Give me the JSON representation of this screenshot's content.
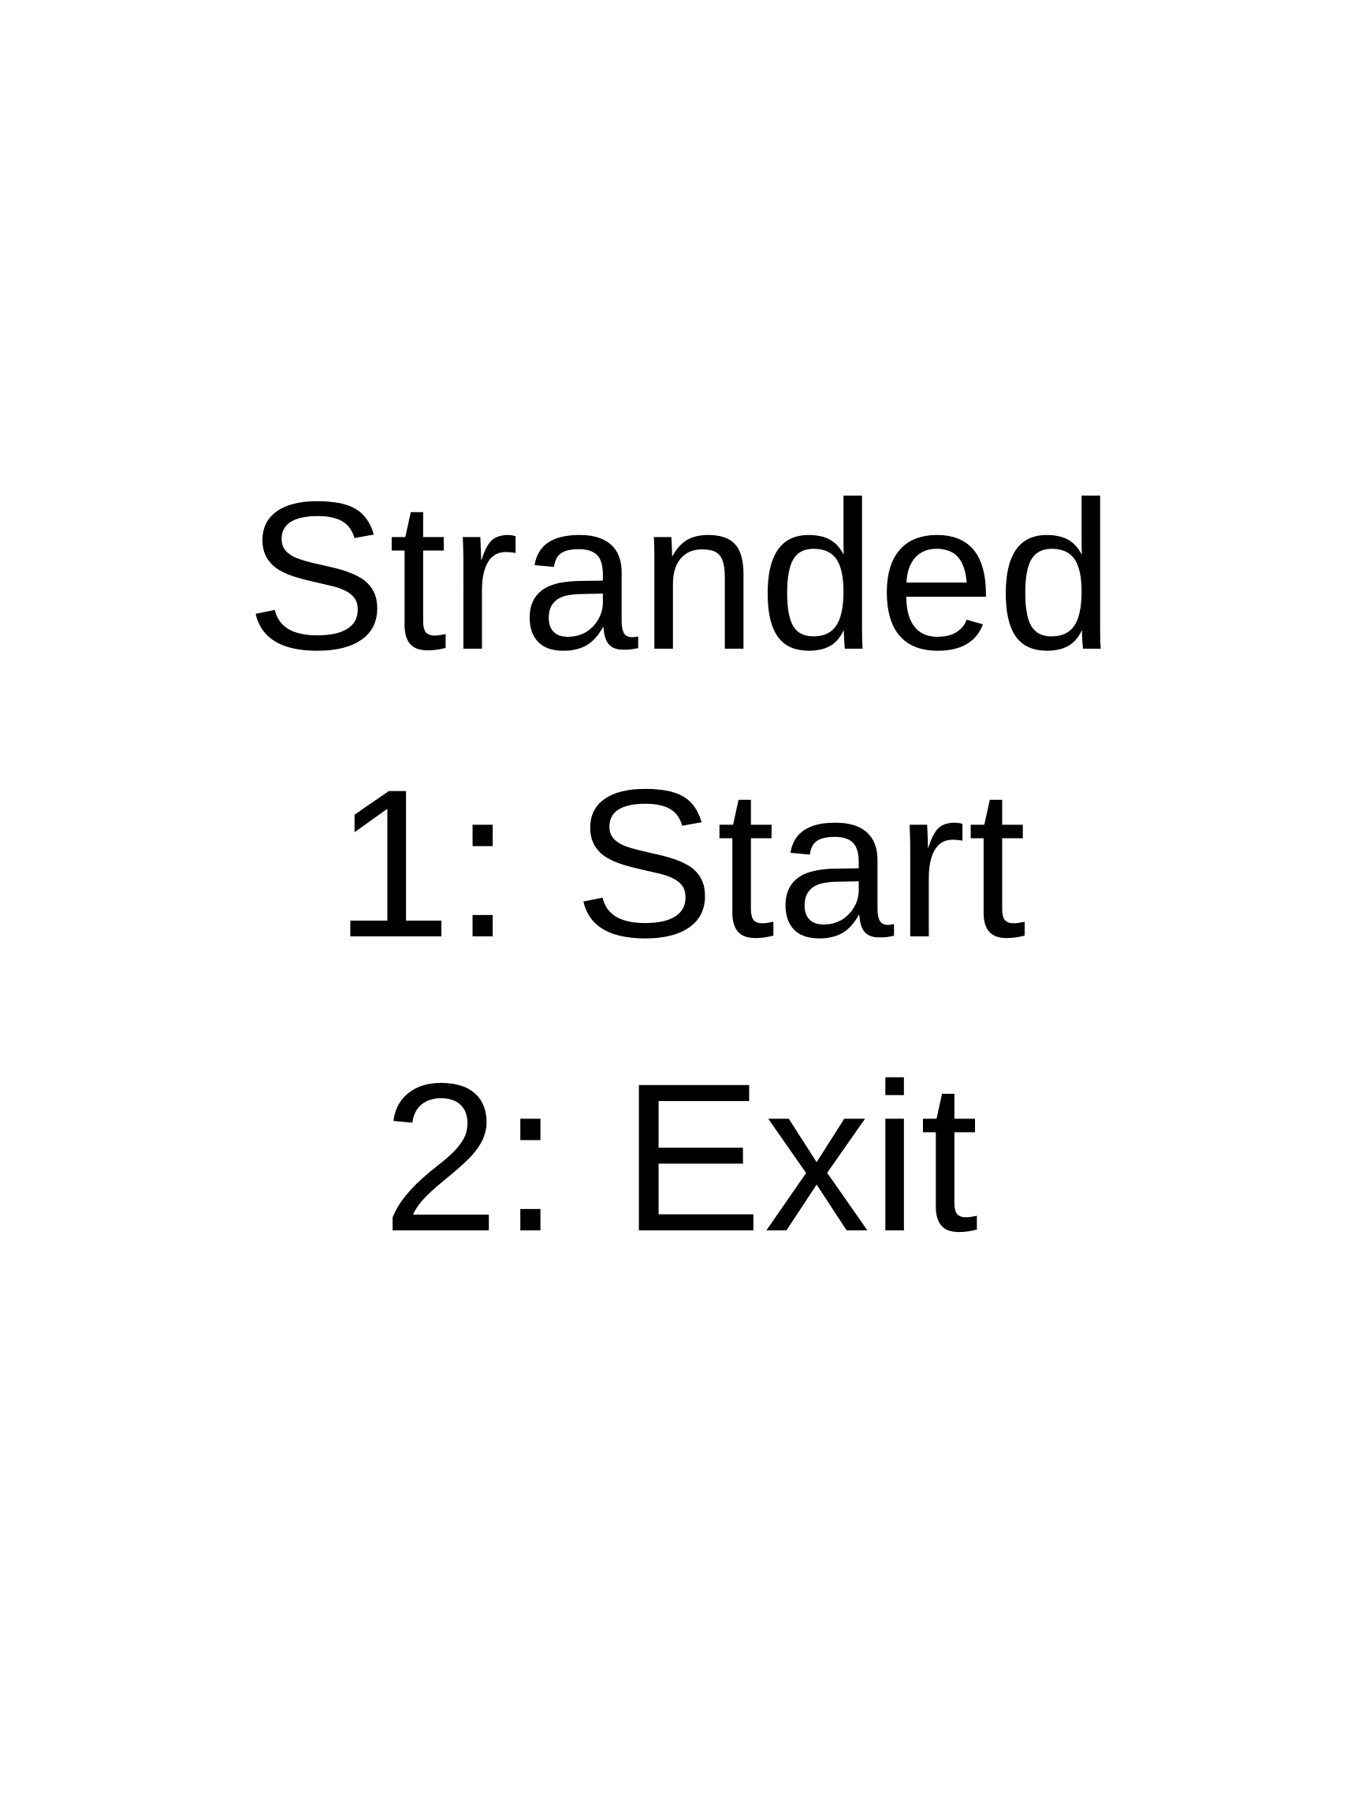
{
  "menu": {
    "title": "Stranded",
    "options": [
      {
        "label": "1: Start"
      },
      {
        "label": "2: Exit"
      }
    ]
  },
  "colors": {
    "background": "#ffffff",
    "text": "#000000"
  }
}
